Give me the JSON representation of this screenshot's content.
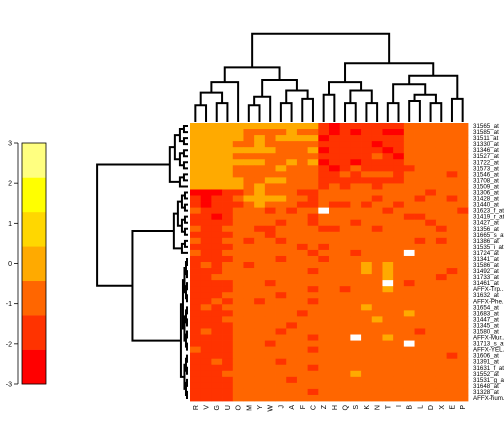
{
  "chart_data": {
    "type": "heatmap",
    "columns": [
      "R",
      "V",
      "G",
      "U",
      "O",
      "M",
      "Y",
      "W",
      "J",
      "A",
      "F",
      "C",
      "Z",
      "H",
      "Q",
      "S",
      "K",
      "N",
      "T",
      "I",
      "B",
      "L",
      "D",
      "X",
      "E",
      "P"
    ],
    "rows": [
      "31565_at",
      "31585_at",
      "31511_at",
      "31330_at",
      "31346_at",
      "31527_at",
      "31722_at",
      "31573_at",
      "31546_at",
      "31708_at",
      "31509_at",
      "31306_at",
      "31428_at",
      "31440_at",
      "31623_f_at",
      "31419_r_at",
      "31427_at",
      "31356_at",
      "31665_s_at",
      "31386_at",
      "31535_i_at",
      "31724_at",
      "31341_at",
      "31586_at",
      "31492_at",
      "31733_at",
      "31461_at",
      "AFFX-Trp...",
      "31632_at",
      "AFFX-Phe...",
      "31654_at",
      "31683_at",
      "31447_at",
      "31345_at",
      "31580_at",
      "AFFX-Mur...",
      "31713_s_at",
      "AFFX-YEL...",
      "31606_at",
      "31391_at",
      "31631_f_at",
      "31552_at",
      "31531_g_at",
      "31648_at",
      "31328_at",
      "AFFX-hum..."
    ],
    "values": [
      [
        3,
        3,
        3,
        3,
        3,
        3,
        3,
        3,
        3,
        3,
        3,
        3,
        1,
        0,
        1,
        1,
        1,
        1,
        1,
        1,
        2,
        2,
        2,
        2,
        2,
        2
      ],
      [
        3,
        3,
        3,
        3,
        3,
        2,
        2,
        2,
        2,
        3,
        2,
        2,
        1,
        0,
        1,
        0,
        1,
        1,
        0,
        0,
        2,
        2,
        2,
        2,
        2,
        2
      ],
      [
        3,
        3,
        3,
        3,
        3,
        2,
        3,
        2,
        3,
        3,
        3,
        3,
        0,
        1,
        1,
        1,
        1,
        1,
        1,
        1,
        2,
        2,
        2,
        2,
        2,
        2
      ],
      [
        3,
        3,
        3,
        3,
        2,
        2,
        3,
        2,
        2,
        2,
        2,
        2,
        1,
        1,
        1,
        1,
        1,
        0,
        1,
        1,
        2,
        2,
        2,
        2,
        2,
        2
      ],
      [
        3,
        3,
        3,
        3,
        3,
        3,
        3,
        3,
        2,
        2,
        2,
        3,
        0,
        1,
        1,
        1,
        1,
        1,
        0,
        1,
        2,
        2,
        2,
        2,
        2,
        2
      ],
      [
        3,
        3,
        3,
        3,
        2,
        2,
        2,
        2,
        2,
        2,
        2,
        2,
        1,
        1,
        1,
        1,
        1,
        2,
        1,
        0,
        2,
        2,
        2,
        2,
        2,
        2
      ],
      [
        3,
        3,
        3,
        3,
        3,
        3,
        3,
        2,
        2,
        3,
        2,
        3,
        0,
        1,
        1,
        0,
        1,
        1,
        1,
        1,
        2,
        2,
        2,
        2,
        2,
        2
      ],
      [
        3,
        3,
        3,
        3,
        2,
        2,
        2,
        2,
        3,
        2,
        2,
        2,
        1,
        0,
        1,
        2,
        1,
        1,
        1,
        1,
        1,
        2,
        2,
        2,
        2,
        2
      ],
      [
        3,
        3,
        3,
        3,
        2,
        2,
        2,
        2,
        2,
        2,
        2,
        2,
        1,
        1,
        2,
        1,
        2,
        2,
        2,
        1,
        2,
        2,
        2,
        2,
        1,
        2
      ],
      [
        3,
        3,
        3,
        3,
        3,
        2,
        2,
        3,
        3,
        2,
        2,
        2,
        1,
        1,
        1,
        1,
        1,
        1,
        1,
        1,
        2,
        2,
        2,
        2,
        2,
        2
      ],
      [
        3,
        3,
        3,
        3,
        3,
        2,
        3,
        2,
        2,
        2,
        2,
        2,
        1,
        2,
        1,
        2,
        2,
        1,
        2,
        2,
        2,
        2,
        2,
        2,
        2,
        2
      ],
      [
        0,
        0,
        0,
        1,
        1,
        2,
        3,
        2,
        2,
        2,
        1,
        1,
        2,
        2,
        2,
        2,
        2,
        2,
        2,
        2,
        2,
        2,
        1,
        2,
        2,
        2
      ],
      [
        1,
        0,
        1,
        1,
        2,
        3,
        3,
        3,
        3,
        2,
        2,
        1,
        2,
        2,
        2,
        2,
        2,
        1,
        2,
        2,
        2,
        1,
        2,
        2,
        1,
        2
      ],
      [
        1,
        0,
        1,
        1,
        1,
        2,
        3,
        2,
        2,
        2,
        1,
        1,
        2,
        1,
        1,
        2,
        1,
        2,
        2,
        1,
        2,
        2,
        2,
        2,
        2,
        2
      ],
      [
        2,
        1,
        1,
        1,
        2,
        2,
        2,
        1,
        2,
        1,
        2,
        2,
        3,
        2,
        2,
        2,
        2,
        2,
        1,
        2,
        2,
        2,
        2,
        2,
        2,
        1
      ],
      [
        1,
        1,
        0,
        1,
        2,
        2,
        2,
        2,
        2,
        2,
        2,
        1,
        2,
        2,
        2,
        2,
        2,
        2,
        2,
        2,
        1,
        1,
        2,
        2,
        2,
        2
      ],
      [
        1,
        1,
        1,
        1,
        2,
        2,
        2,
        2,
        1,
        2,
        2,
        1,
        2,
        2,
        2,
        1,
        2,
        2,
        2,
        2,
        2,
        2,
        1,
        2,
        2,
        2
      ],
      [
        2,
        1,
        1,
        2,
        2,
        2,
        1,
        1,
        2,
        2,
        2,
        2,
        1,
        1,
        2,
        2,
        2,
        1,
        2,
        2,
        2,
        2,
        2,
        1,
        2,
        2
      ],
      [
        1,
        1,
        1,
        1,
        2,
        2,
        2,
        1,
        2,
        2,
        2,
        2,
        2,
        2,
        2,
        2,
        2,
        2,
        2,
        2,
        2,
        2,
        2,
        2,
        2,
        2
      ],
      [
        2,
        1,
        1,
        2,
        2,
        1,
        2,
        2,
        1,
        2,
        2,
        2,
        2,
        2,
        2,
        2,
        2,
        2,
        2,
        2,
        2,
        1,
        2,
        1,
        2,
        2
      ],
      [
        1,
        1,
        1,
        1,
        2,
        2,
        2,
        2,
        2,
        2,
        1,
        2,
        1,
        2,
        2,
        2,
        2,
        2,
        2,
        2,
        2,
        2,
        2,
        2,
        2,
        2
      ],
      [
        2,
        1,
        1,
        2,
        2,
        2,
        2,
        2,
        2,
        2,
        2,
        1,
        2,
        2,
        2,
        1,
        2,
        2,
        2,
        2,
        2,
        2,
        2,
        2,
        2,
        2
      ],
      [
        1,
        1,
        1,
        1,
        2,
        2,
        2,
        2,
        1,
        2,
        2,
        2,
        1,
        2,
        2,
        2,
        2,
        2,
        2,
        2,
        2,
        2,
        2,
        2,
        2,
        2
      ],
      [
        1,
        2,
        1,
        2,
        2,
        1,
        2,
        2,
        2,
        2,
        2,
        2,
        2,
        2,
        2,
        2,
        3,
        2,
        3,
        2,
        2,
        2,
        2,
        2,
        2,
        2
      ],
      [
        1,
        1,
        1,
        2,
        2,
        2,
        2,
        2,
        2,
        2,
        2,
        1,
        2,
        2,
        2,
        2,
        3,
        2,
        3,
        2,
        2,
        2,
        2,
        2,
        1,
        2
      ],
      [
        1,
        1,
        2,
        2,
        2,
        2,
        2,
        2,
        2,
        2,
        2,
        2,
        2,
        2,
        2,
        2,
        2,
        2,
        3,
        2,
        2,
        2,
        2,
        1,
        2,
        2
      ],
      [
        1,
        1,
        1,
        1,
        2,
        2,
        2,
        1,
        2,
        2,
        2,
        2,
        2,
        2,
        2,
        2,
        2,
        2,
        2,
        2,
        1,
        2,
        2,
        2,
        2,
        2
      ],
      [
        1,
        1,
        1,
        1,
        2,
        2,
        2,
        2,
        2,
        2,
        2,
        1,
        2,
        2,
        1,
        2,
        2,
        2,
        3,
        2,
        2,
        2,
        2,
        2,
        2,
        2
      ],
      [
        1,
        1,
        1,
        2,
        2,
        2,
        2,
        2,
        1,
        2,
        2,
        2,
        2,
        2,
        2,
        2,
        2,
        2,
        2,
        2,
        2,
        2,
        2,
        2,
        2,
        2
      ],
      [
        1,
        1,
        2,
        1,
        2,
        2,
        1,
        2,
        2,
        2,
        2,
        1,
        2,
        2,
        2,
        2,
        2,
        2,
        2,
        2,
        2,
        2,
        2,
        2,
        2,
        2
      ],
      [
        1,
        2,
        1,
        2,
        2,
        2,
        2,
        2,
        2,
        2,
        2,
        2,
        2,
        2,
        2,
        2,
        3,
        2,
        2,
        2,
        2,
        2,
        2,
        2,
        2,
        2
      ],
      [
        1,
        1,
        1,
        1,
        2,
        2,
        2,
        2,
        2,
        2,
        1,
        2,
        2,
        2,
        2,
        2,
        2,
        2,
        2,
        2,
        3,
        2,
        2,
        2,
        2,
        2
      ],
      [
        1,
        1,
        1,
        2,
        2,
        2,
        2,
        2,
        2,
        2,
        2,
        2,
        2,
        2,
        2,
        2,
        2,
        3,
        2,
        2,
        2,
        2,
        2,
        2,
        2,
        2
      ],
      [
        1,
        1,
        1,
        1,
        2,
        2,
        2,
        2,
        2,
        1,
        2,
        2,
        2,
        2,
        2,
        2,
        2,
        2,
        2,
        2,
        2,
        2,
        2,
        2,
        2,
        2
      ],
      [
        1,
        2,
        1,
        1,
        2,
        2,
        2,
        2,
        1,
        2,
        2,
        2,
        2,
        2,
        2,
        2,
        2,
        2,
        2,
        2,
        2,
        1,
        2,
        2,
        2,
        2
      ],
      [
        1,
        1,
        1,
        1,
        2,
        2,
        2,
        2,
        2,
        2,
        2,
        1,
        2,
        2,
        2,
        2,
        2,
        2,
        3,
        2,
        2,
        2,
        2,
        2,
        2,
        2
      ],
      [
        1,
        1,
        1,
        1,
        2,
        2,
        2,
        1,
        2,
        2,
        2,
        2,
        2,
        2,
        2,
        2,
        2,
        2,
        2,
        2,
        2,
        2,
        2,
        2,
        2,
        2
      ],
      [
        2,
        1,
        1,
        1,
        2,
        2,
        2,
        2,
        2,
        2,
        2,
        1,
        2,
        2,
        2,
        2,
        2,
        2,
        2,
        2,
        2,
        2,
        2,
        2,
        2,
        2
      ],
      [
        1,
        1,
        1,
        1,
        2,
        2,
        2,
        2,
        2,
        2,
        2,
        2,
        2,
        2,
        2,
        2,
        2,
        2,
        2,
        2,
        2,
        2,
        2,
        2,
        1,
        2
      ],
      [
        1,
        1,
        2,
        1,
        2,
        2,
        2,
        2,
        1,
        2,
        2,
        2,
        2,
        2,
        2,
        2,
        2,
        2,
        2,
        2,
        2,
        2,
        2,
        2,
        2,
        2
      ],
      [
        1,
        1,
        1,
        1,
        2,
        2,
        2,
        2,
        2,
        2,
        2,
        1,
        2,
        2,
        2,
        2,
        2,
        2,
        2,
        2,
        2,
        2,
        2,
        2,
        2,
        2
      ],
      [
        1,
        1,
        1,
        2,
        2,
        2,
        2,
        2,
        2,
        2,
        2,
        2,
        2,
        2,
        2,
        3,
        2,
        2,
        2,
        2,
        2,
        2,
        2,
        2,
        2,
        2
      ],
      [
        1,
        1,
        1,
        1,
        2,
        2,
        2,
        2,
        2,
        1,
        2,
        2,
        2,
        2,
        2,
        2,
        2,
        2,
        2,
        2,
        2,
        2,
        2,
        2,
        2,
        2
      ],
      [
        1,
        1,
        1,
        1,
        2,
        2,
        2,
        2,
        2,
        2,
        2,
        2,
        2,
        2,
        2,
        2,
        2,
        2,
        2,
        2,
        2,
        2,
        2,
        2,
        2,
        2
      ],
      [
        1,
        1,
        1,
        1,
        2,
        2,
        2,
        2,
        2,
        2,
        2,
        1,
        2,
        2,
        2,
        2,
        2,
        2,
        2,
        2,
        2,
        2,
        2,
        2,
        2,
        2
      ],
      [
        1,
        1,
        1,
        1,
        2,
        2,
        2,
        2,
        2,
        2,
        2,
        2,
        2,
        2,
        2,
        2,
        2,
        2,
        2,
        2,
        2,
        2,
        2,
        2,
        2,
        2
      ]
    ],
    "blank_cells": [
      [
        14,
        12
      ],
      [
        21,
        20
      ],
      [
        26,
        18
      ],
      [
        35,
        15
      ],
      [
        36,
        20
      ]
    ],
    "color_scale": {
      "breaks": [
        -3,
        -2,
        -1,
        0,
        1,
        2,
        3
      ],
      "colors": [
        "#FF0000",
        "#FF3300",
        "#FF6600",
        "#FFAA00",
        "#FFD700",
        "#FFFF00",
        "#FFFF80"
      ],
      "ticks": [
        -3,
        -2,
        -1,
        0,
        1,
        2,
        3
      ]
    },
    "row_dendrogram": true,
    "column_dendrogram": true,
    "legend_placement": "left"
  }
}
